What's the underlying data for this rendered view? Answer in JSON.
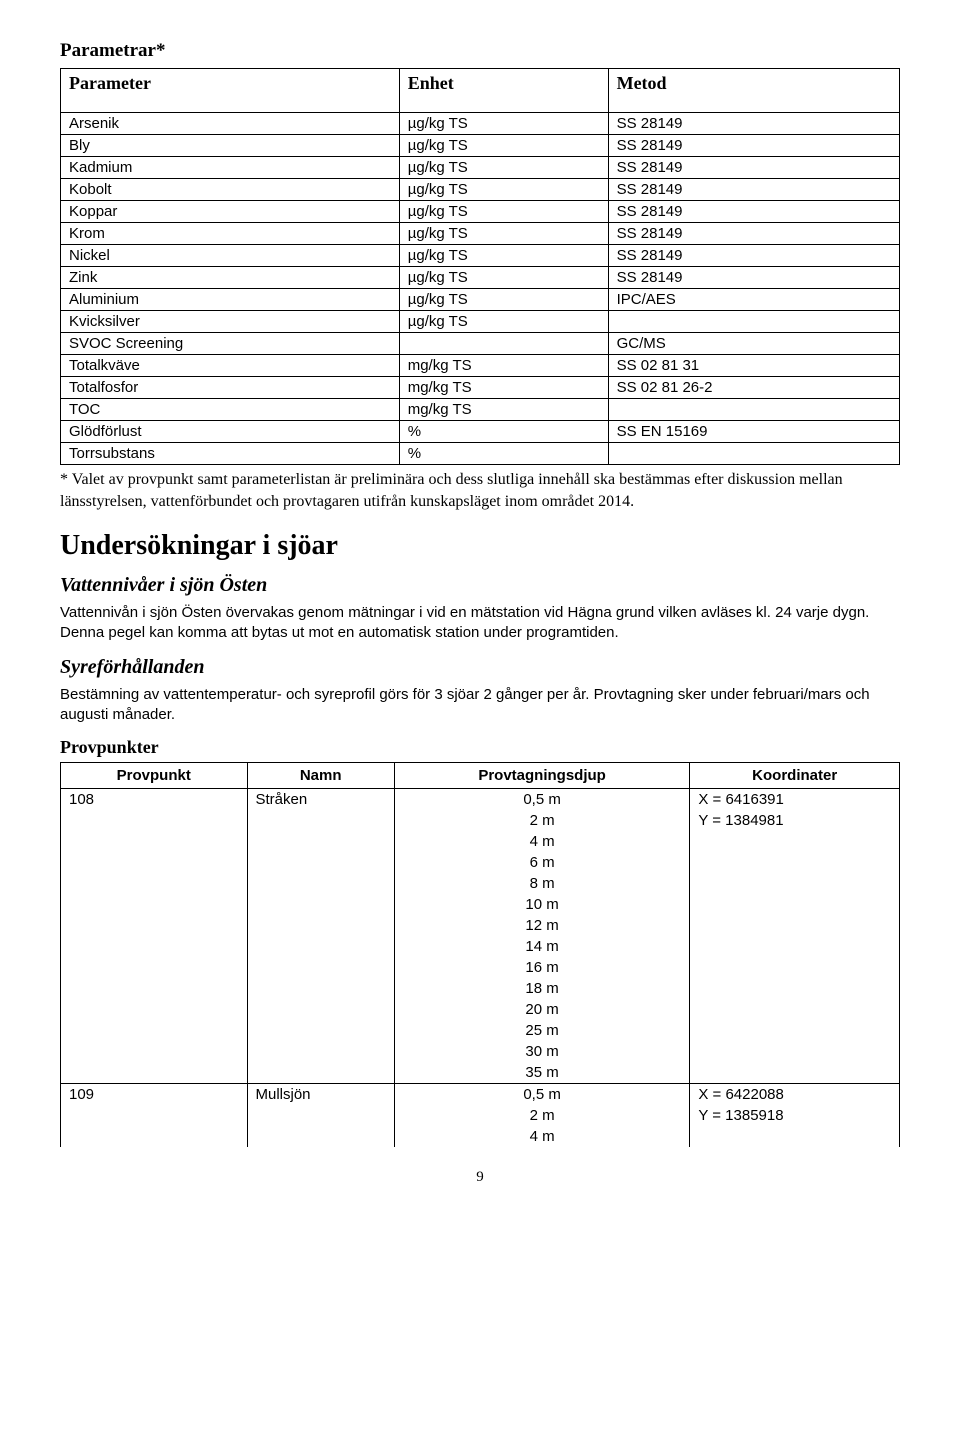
{
  "section1": {
    "title": "Parametrar*",
    "table_headers": [
      "Parameter",
      "Enhet",
      "Metod"
    ],
    "rows": [
      [
        "Arsenik",
        "µg/kg TS",
        "SS 28149"
      ],
      [
        "Bly",
        "µg/kg TS",
        "SS 28149"
      ],
      [
        "Kadmium",
        "µg/kg TS",
        "SS 28149"
      ],
      [
        "Kobolt",
        "µg/kg TS",
        "SS 28149"
      ],
      [
        "Koppar",
        "µg/kg TS",
        "SS 28149"
      ],
      [
        "Krom",
        "µg/kg TS",
        "SS 28149"
      ],
      [
        "Nickel",
        "µg/kg TS",
        "SS 28149"
      ],
      [
        "Zink",
        "µg/kg TS",
        "SS 28149"
      ],
      [
        "Aluminium",
        "µg/kg TS",
        "IPC/AES"
      ],
      [
        "Kvicksilver",
        "µg/kg TS",
        ""
      ],
      [
        "SVOC Screening",
        "",
        "GC/MS"
      ],
      [
        "Totalkväve",
        "mg/kg TS",
        "SS 02 81 31"
      ],
      [
        "Totalfosfor",
        "mg/kg TS",
        "SS 02 81 26-2"
      ],
      [
        "TOC",
        "mg/kg TS",
        ""
      ],
      [
        "Glödförlust",
        "%",
        "SS EN 15169"
      ],
      [
        "Torrsubstans",
        "%",
        ""
      ]
    ],
    "footnote": "* Valet av provpunkt samt parameterlistan är preliminära och dess slutliga innehåll ska bestämmas efter diskussion mellan länsstyrelsen, vattenförbundet och provtagaren utifrån kunskapsläget inom området 2014."
  },
  "heading_main": "Undersökningar i sjöar",
  "sub1": {
    "title": "Vattennivåer i sjön Östen",
    "body": "Vattennivån i sjön Östen övervakas genom mätningar i vid en mätstation vid Hägna grund vilken avläses kl. 24 varje dygn. Denna pegel kan komma att bytas ut mot en automatisk station under programtiden."
  },
  "sub2": {
    "title": "Syreförhållanden",
    "body": "Bestämning av vattentemperatur- och syreprofil görs för 3 sjöar 2 gånger per år. Provtagning sker under februari/mars och augusti månader."
  },
  "provpunkter": {
    "title": "Provpunkter",
    "headers": [
      "Provpunkt",
      "Namn",
      "Provtagningsdjup",
      "Koordinater"
    ],
    "groups": [
      {
        "provpunkt": "108",
        "namn": "Stråken",
        "djup": [
          "0,5 m",
          "2 m",
          "4 m",
          "6 m",
          "8 m",
          "10 m",
          "12 m",
          "14 m",
          "16 m",
          "18 m",
          "20 m",
          "25 m",
          "30 m",
          "35 m"
        ],
        "koord": [
          "X = 6416391",
          "Y = 1384981"
        ]
      },
      {
        "provpunkt": "109",
        "namn": "Mullsjön",
        "djup": [
          "0,5 m",
          "2 m",
          "4 m"
        ],
        "koord": [
          "X = 6422088",
          "Y = 1385918"
        ]
      }
    ]
  },
  "page_number": "9"
}
